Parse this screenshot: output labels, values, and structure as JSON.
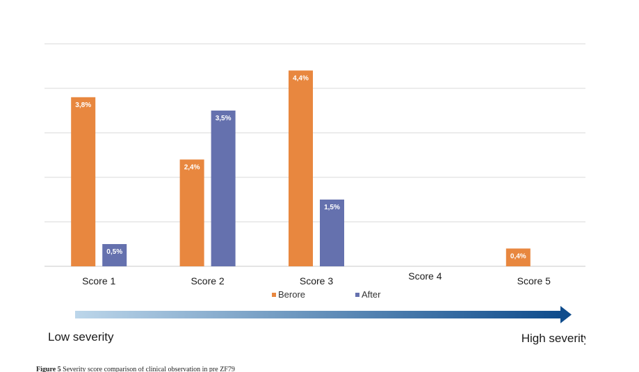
{
  "chart_data": {
    "type": "bar",
    "categories": [
      "Score 1",
      "Score 2",
      "Score 3",
      "Score 4",
      "Score 5"
    ],
    "series": [
      {
        "name": "Berore",
        "values": [
          3.8,
          2.4,
          4.4,
          null,
          0.4
        ],
        "labels": [
          "3,8%",
          "2,4%",
          "4,4%",
          "",
          "0,4%"
        ],
        "color": "#e8873f"
      },
      {
        "name": "After",
        "values": [
          0.5,
          3.5,
          1.5,
          null,
          null
        ],
        "labels": [
          "0,5%",
          "3,5%",
          "1,5%",
          "",
          ""
        ],
        "color": "#6571ae"
      }
    ],
    "ylim": [
      0,
      5
    ],
    "grid": true,
    "legend_position": "bottom-center",
    "severity_arrow": {
      "low_label": "Low severity",
      "high_label": "High severity",
      "color_start": "#bcd6ea",
      "color_end": "#0f4c8c"
    }
  },
  "caption": {
    "figure_label": "Figure 5",
    "text": "Severity score comparison of clinical observation in pre ZF79"
  }
}
